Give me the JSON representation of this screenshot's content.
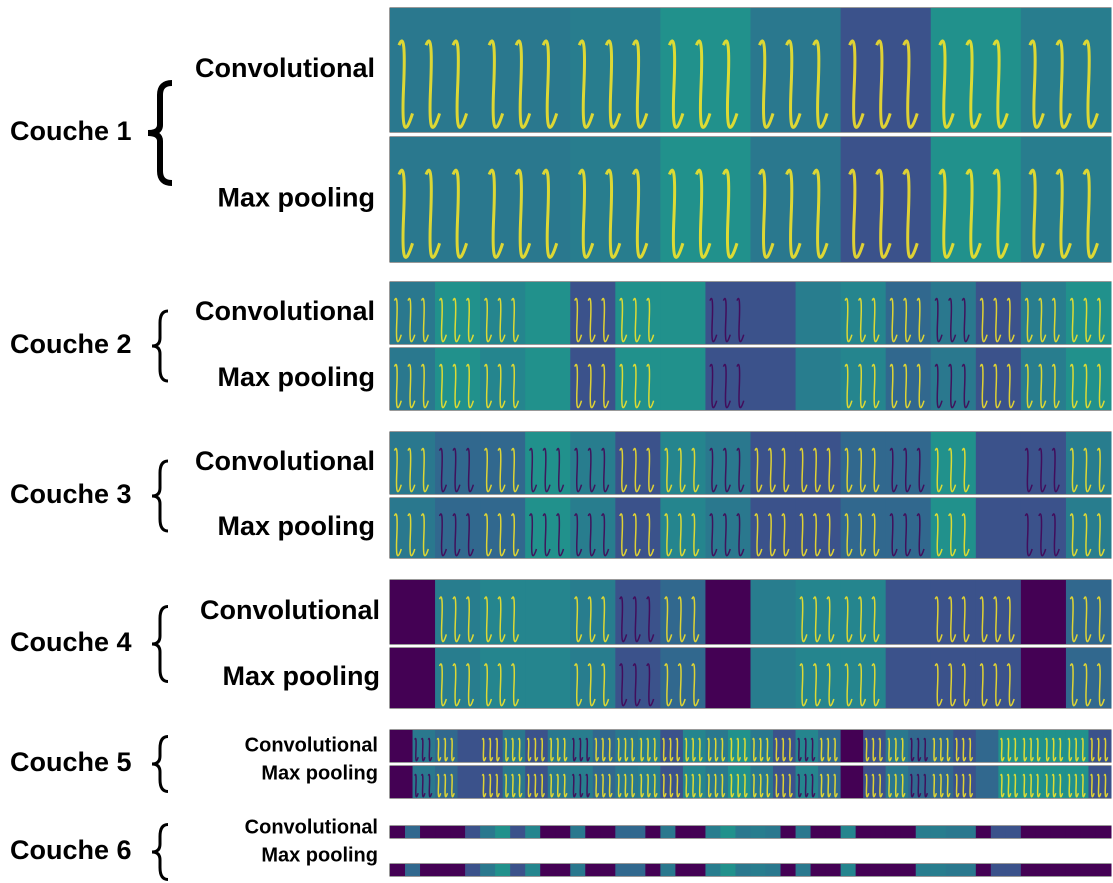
{
  "layers": [
    {
      "label": "Couche 1",
      "rows": [
        "Convolutional",
        "Max pooling"
      ]
    },
    {
      "label": "Couche 2",
      "rows": [
        "Convolutional",
        "Max pooling"
      ]
    },
    {
      "label": "Couche 3",
      "rows": [
        "Convolutional",
        "Max pooling"
      ]
    },
    {
      "label": "Couche 4",
      "rows": [
        "Convolutional",
        "Max pooling"
      ]
    },
    {
      "label": "Couche 5",
      "rows": [
        "Convolutional",
        "Max pooling"
      ]
    },
    {
      "label": "Couche 6",
      "rows": [
        "Convolutional",
        "Max pooling"
      ]
    }
  ]
}
